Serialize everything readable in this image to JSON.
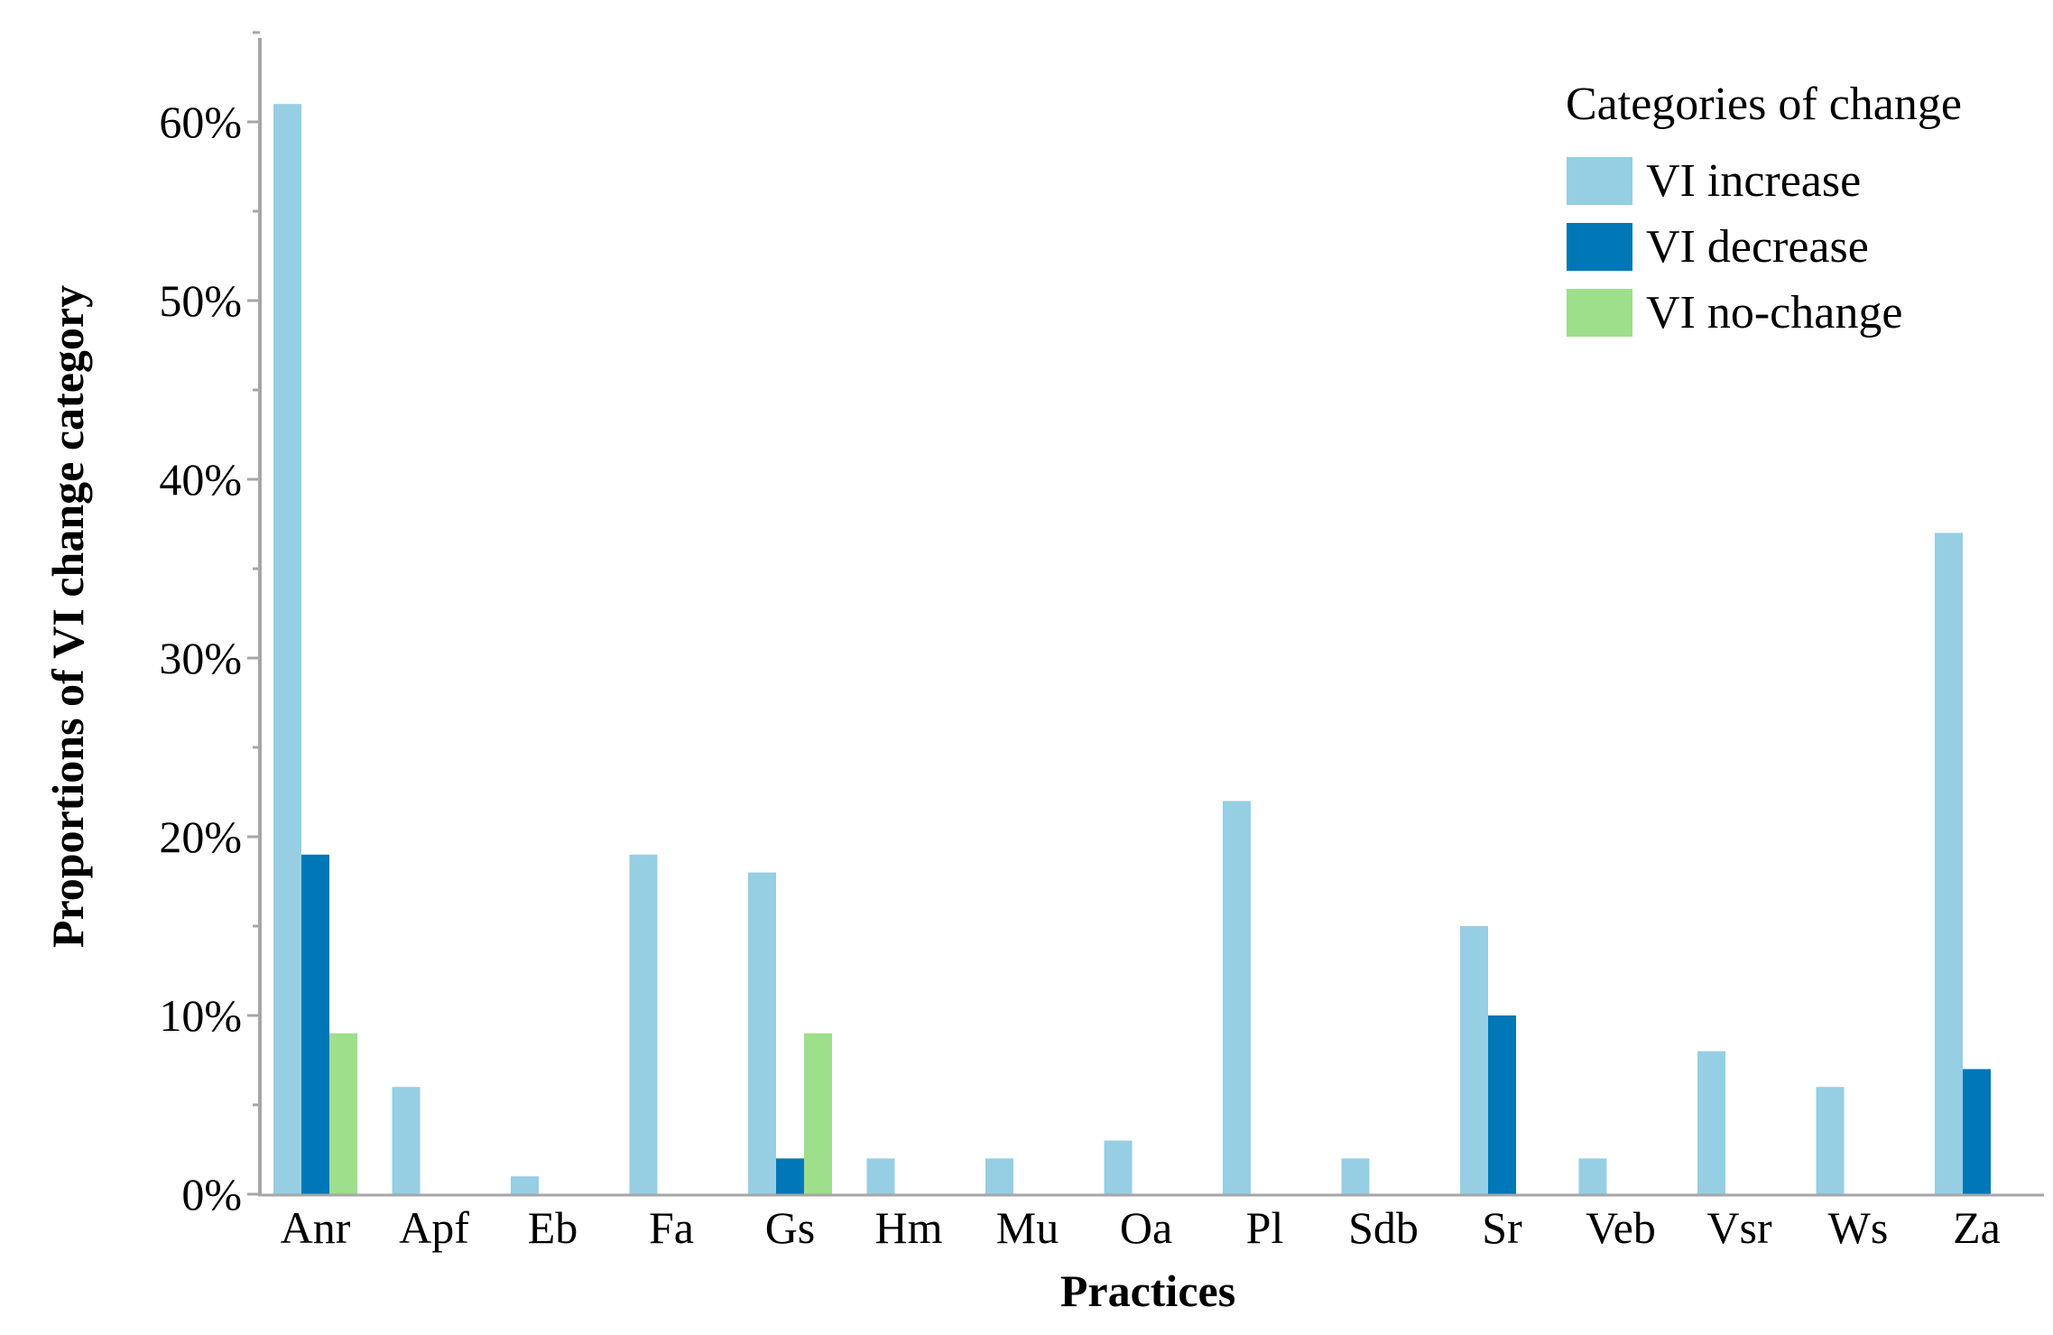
{
  "chart_data": {
    "type": "bar",
    "title": "",
    "xlabel": "Practices",
    "ylabel": "Proportions of VI change category",
    "ylim": [
      0,
      65
    ],
    "y_ticks": [
      0,
      10,
      20,
      30,
      40,
      50,
      60
    ],
    "y_tick_labels": [
      "0%",
      "10%",
      "20%",
      "30%",
      "40%",
      "50%",
      "60%"
    ],
    "grid": false,
    "legend_position": "top-right",
    "legend_title": "Categories of change",
    "categories": [
      "Anr",
      "Apf",
      "Eb",
      "Fa",
      "Gs",
      "Hm",
      "Mu",
      "Oa",
      "Pl",
      "Sdb",
      "Sr",
      "Veb",
      "Vsr",
      "Ws",
      "Za"
    ],
    "series": [
      {
        "name": "VI increase",
        "color": "#96CEE4",
        "values": [
          61,
          6,
          1,
          19,
          18,
          2,
          2,
          3,
          22,
          2,
          15,
          2,
          8,
          6,
          37
        ]
      },
      {
        "name": "VI decrease",
        "color": "#0077B6",
        "values": [
          19,
          0,
          0,
          0,
          2,
          0,
          0,
          0,
          0,
          0,
          10,
          0,
          0,
          0,
          7
        ]
      },
      {
        "name": "VI no-change",
        "color": "#9DDF8A",
        "values": [
          9,
          0,
          0,
          0,
          9,
          0,
          0,
          0,
          0,
          0,
          0,
          0,
          0,
          0,
          0
        ]
      }
    ]
  },
  "colors": {
    "axis": "#A6A6A6",
    "text": "#000000"
  }
}
